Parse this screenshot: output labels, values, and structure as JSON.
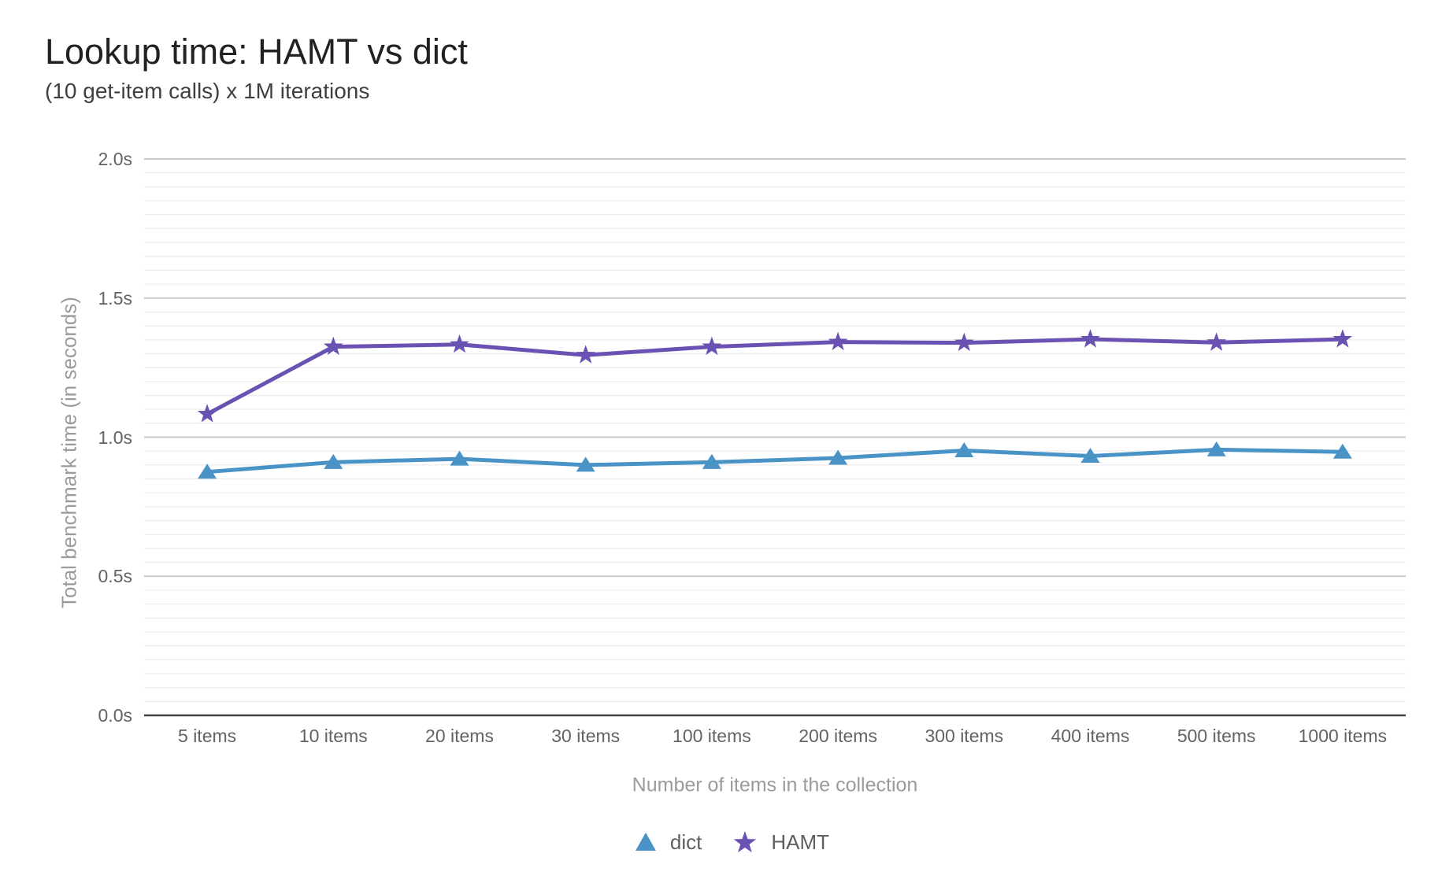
{
  "chart_data": {
    "type": "line",
    "title": "Lookup time: HAMT vs dict",
    "subtitle": "(10 get-item calls) x 1M iterations",
    "xlabel": "Number of items in the collection",
    "ylabel": "Total benchmark time (in seconds)",
    "categories": [
      "5 items",
      "10 items",
      "20 items",
      "30 items",
      "100 items",
      "200 items",
      "300 items",
      "400 items",
      "500 items",
      "1000 items"
    ],
    "series": [
      {
        "name": "dict",
        "color": "#4a93c7",
        "marker": "triangle",
        "values": [
          0.875,
          0.91,
          0.922,
          0.9,
          0.91,
          0.925,
          0.952,
          0.932,
          0.955,
          0.947
        ]
      },
      {
        "name": "HAMT",
        "color": "#6a52b3",
        "marker": "star",
        "values": [
          1.083,
          1.325,
          1.333,
          1.295,
          1.325,
          1.342,
          1.339,
          1.352,
          1.34,
          1.352
        ]
      }
    ],
    "ylim": [
      0,
      2
    ],
    "yticks": {
      "labels": [
        "0.0s",
        "0.5s",
        "1.0s",
        "1.5s",
        "2.0s"
      ],
      "values": [
        0,
        0.5,
        1.0,
        1.5,
        2.0
      ]
    },
    "minor_tick_step": 0.05,
    "major_tick_step": 0.5,
    "grid": true,
    "legend_position": "bottom",
    "colors": {
      "grid_major": "#c9c9c9",
      "grid_minor": "#ececec",
      "axis_baseline": "#424242"
    }
  }
}
